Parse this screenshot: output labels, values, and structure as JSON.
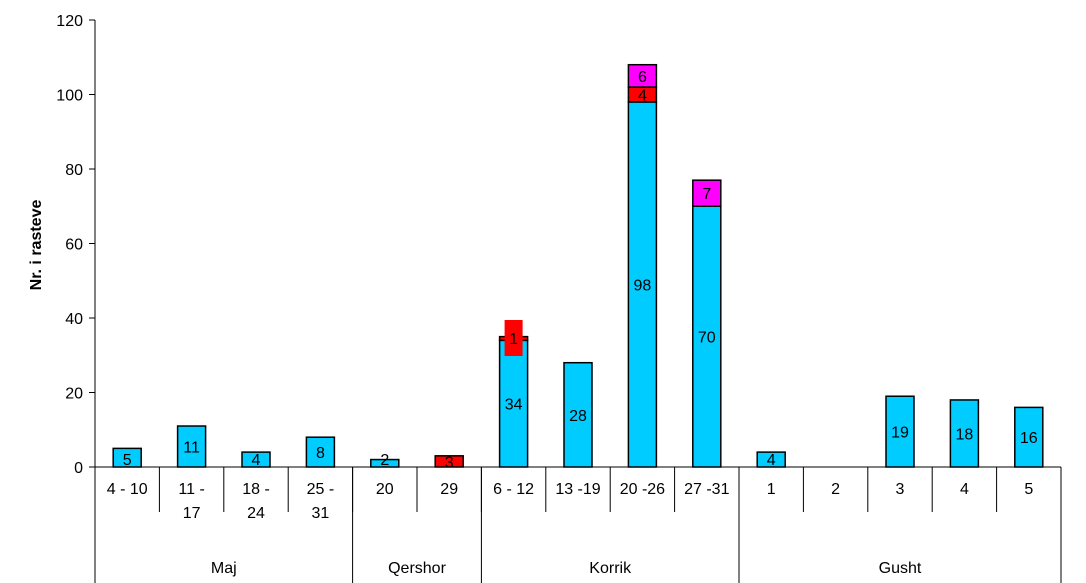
{
  "chart_data": {
    "type": "bar",
    "stacked": true,
    "ylabel": "Nr. i rasteve",
    "xlabel": "",
    "ylim": [
      0,
      120
    ],
    "yticks": [
      "0",
      "20",
      "40",
      "60",
      "80",
      "100",
      "120"
    ],
    "grid": false,
    "categories": [
      "4 - 10",
      "11 - 17",
      "18 - 24",
      "25 - 31",
      "20",
      "29",
      "6 - 12",
      "13 -19",
      "20 -26",
      "27 -31",
      "1",
      "2",
      "3",
      "4",
      "5"
    ],
    "category_lines": [
      [
        "4 - 10"
      ],
      [
        "11 -",
        "17"
      ],
      [
        "18 -",
        "24"
      ],
      [
        "25 -",
        "31"
      ],
      [
        "20"
      ],
      [
        "29"
      ],
      [
        "6 - 12"
      ],
      [
        "13 -19"
      ],
      [
        "20 -26"
      ],
      [
        "27 -31"
      ],
      [
        "1"
      ],
      [
        "2"
      ],
      [
        "3"
      ],
      [
        "4"
      ],
      [
        "5"
      ]
    ],
    "groups": [
      {
        "label": "Maj",
        "count": 4
      },
      {
        "label": "Qershor",
        "count": 2
      },
      {
        "label": "Korrik",
        "count": 4
      },
      {
        "label": "Gusht",
        "count": 5
      }
    ],
    "series": [
      {
        "color": "#00ccff",
        "values": [
          5,
          11,
          4,
          8,
          2,
          0,
          34,
          28,
          98,
          70,
          4,
          0,
          19,
          18,
          16
        ]
      },
      {
        "color": "#ff0000",
        "values": [
          0,
          0,
          0,
          0,
          0,
          3,
          1,
          0,
          4,
          0,
          0,
          0,
          0,
          0,
          0
        ]
      },
      {
        "color": "#ff00ff",
        "values": [
          0,
          0,
          0,
          0,
          0,
          0,
          0,
          0,
          6,
          7,
          0,
          0,
          0,
          0,
          0
        ]
      }
    ]
  }
}
